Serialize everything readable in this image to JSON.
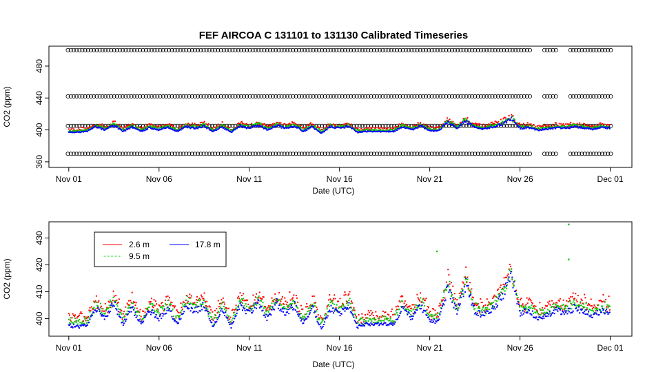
{
  "title": "FEF   AIRCOA  C    131101  to  131130   Calibrated Timeseries",
  "colors": {
    "s26": "#ff0000",
    "s95": "#00cc00",
    "s178": "#0000ff",
    "ref": "#000000"
  },
  "chart_data": [
    {
      "type": "scatter",
      "title": "FEF   AIRCOA  C    131101  to  131130   Calibrated Timeseries",
      "xlabel": "Date (UTC)",
      "ylabel": "CO2 (ppm)",
      "x_ticks": [
        "Nov 01",
        "Nov 06",
        "Nov 11",
        "Nov 16",
        "Nov 21",
        "Nov 26",
        "Dec 01"
      ],
      "x_tick_days": [
        0,
        5,
        10,
        15,
        20,
        25,
        30
      ],
      "xlim_days": [
        -1.1,
        31.2
      ],
      "y_ticks": [
        360,
        400,
        440,
        480
      ],
      "ylim": [
        353,
        505
      ],
      "reference_lines": [
        {
          "name": "cal-high",
          "value": 500,
          "gaps": [
            [
              25.6,
              26.3
            ],
            [
              27.1,
              27.7
            ],
            [
              30.2,
              31.2
            ]
          ]
        },
        {
          "name": "cal-mid",
          "value": 442,
          "gaps": [
            [
              25.6,
              26.3
            ],
            [
              27.1,
              27.7
            ],
            [
              30.2,
              31.2
            ]
          ]
        },
        {
          "name": "cal-ref",
          "value": 405,
          "gaps": [
            [
              25.6,
              26.3
            ],
            [
              27.1,
              27.7
            ],
            [
              30.2,
              31.2
            ]
          ]
        },
        {
          "name": "cal-low",
          "value": 370,
          "gaps": [
            [
              25.6,
              26.3
            ],
            [
              27.1,
              27.7
            ],
            [
              30.2,
              31.2
            ]
          ]
        }
      ],
      "series": [
        {
          "name": "2.6 m",
          "color": "#ff0000",
          "offset": 3.5
        },
        {
          "name": "9.5 m",
          "color": "#00cc00",
          "offset": 1.8
        },
        {
          "name": "17.8 m",
          "color": "#0000ff",
          "offset": 0
        }
      ],
      "base_profile_days": [
        0,
        0.5,
        1,
        1.5,
        2,
        2.5,
        3,
        3.5,
        4,
        4.5,
        5,
        5.5,
        6,
        6.5,
        7,
        7.5,
        8,
        8.5,
        9,
        9.5,
        10,
        10.5,
        11,
        11.5,
        12,
        12.5,
        13,
        13.5,
        14,
        14.5,
        15,
        15.5,
        16,
        16.5,
        17,
        17.5,
        18,
        18.5,
        19,
        19.5,
        20,
        20.5,
        21,
        21.5,
        22,
        22.5,
        23,
        23.5,
        24,
        24.5,
        25,
        25.5,
        26,
        26.5,
        27,
        27.5,
        28,
        28.5,
        29,
        29.5,
        30
      ],
      "base_profile_ppm": [
        397,
        397,
        398,
        404,
        400,
        406,
        398,
        404,
        398,
        403,
        400,
        404,
        398,
        404,
        402,
        405,
        398,
        404,
        397,
        405,
        402,
        406,
        400,
        406,
        402,
        405,
        398,
        404,
        396,
        404,
        402,
        405,
        397,
        398,
        398,
        398,
        398,
        404,
        400,
        405,
        399,
        399,
        410,
        402,
        411,
        403,
        401,
        404,
        407,
        414,
        402,
        403,
        400,
        401,
        403,
        402,
        404,
        403,
        401,
        403,
        402
      ]
    },
    {
      "type": "scatter",
      "xlabel": "Date (UTC)",
      "ylabel": "CO2 (ppm)",
      "x_ticks": [
        "Nov 01",
        "Nov 06",
        "Nov 11",
        "Nov 16",
        "Nov 21",
        "Nov 26",
        "Dec 01"
      ],
      "x_tick_days": [
        0,
        5,
        10,
        15,
        20,
        25,
        30
      ],
      "xlim_days": [
        -1.1,
        31.2
      ],
      "y_ticks": [
        400,
        410,
        420,
        430
      ],
      "ylim": [
        393.5,
        436
      ],
      "legend": {
        "entries": [
          "2.6 m",
          "9.5 m",
          "17.8 m"
        ],
        "position": "top-left"
      },
      "series": [
        {
          "name": "2.6 m",
          "color": "#ff0000",
          "offset": 3.5
        },
        {
          "name": "9.5 m",
          "color": "#00cc00",
          "offset": 1.8
        },
        {
          "name": "17.8 m",
          "color": "#0000ff",
          "offset": 0
        }
      ],
      "base_profile_days": [
        0,
        0.5,
        1,
        1.5,
        2,
        2.5,
        3,
        3.5,
        4,
        4.5,
        5,
        5.5,
        6,
        6.5,
        7,
        7.5,
        8,
        8.5,
        9,
        9.5,
        10,
        10.5,
        11,
        11.5,
        12,
        12.5,
        13,
        13.5,
        14,
        14.5,
        15,
        15.5,
        16,
        16.5,
        17,
        17.5,
        18,
        18.5,
        19,
        19.5,
        20,
        20.5,
        21,
        21.5,
        22,
        22.5,
        23,
        23.5,
        24,
        24.5,
        25,
        25.5,
        26,
        26.5,
        27,
        27.5,
        28,
        28.5,
        29,
        29.5,
        30
      ],
      "base_profile_ppm": [
        397.5,
        397,
        397.5,
        404,
        400,
        406,
        398,
        404,
        398,
        403,
        400,
        404,
        398,
        405,
        403,
        405,
        397,
        404,
        397,
        405,
        402,
        406,
        400,
        406,
        402,
        405,
        398,
        404,
        396,
        404,
        402,
        405,
        397,
        398,
        398,
        398,
        398,
        404,
        400,
        405,
        399,
        399,
        412,
        402,
        413,
        403,
        401,
        404,
        408,
        416,
        402,
        403,
        400,
        401,
        403,
        402,
        404,
        403,
        401,
        403,
        402
      ],
      "notable_points": [
        {
          "x_day": 27.7,
          "y": 435,
          "series": "9.5 m"
        },
        {
          "x_day": 27.7,
          "y": 422,
          "series": "9.5 m"
        },
        {
          "x_day": 20.4,
          "y": 425,
          "series": "9.5 m"
        }
      ]
    }
  ]
}
